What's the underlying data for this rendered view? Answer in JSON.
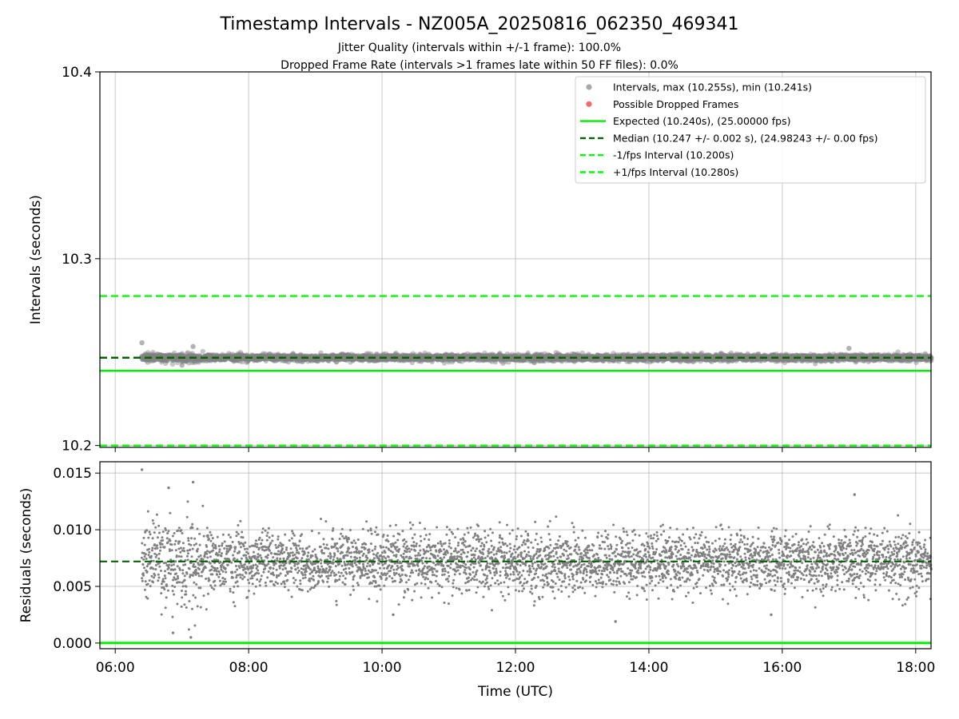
{
  "title": "Timestamp Intervals - NZ005A_20250816_062350_469341",
  "subtitle_lines": [
    "Jitter Quality (intervals within +/-1 frame): 100.0%",
    "Dropped Frame Rate (intervals >1 frames late within 50 FF files): 0.0%"
  ],
  "colors": {
    "points": "#808080",
    "points_legend": "#a9a9a9",
    "dropped": "#f26a6a",
    "expected": "#00ee00",
    "median": "#006400",
    "fps_bounds": "#00ff00",
    "grid": "#b0b0b0"
  },
  "chart_data": [
    {
      "type": "scatter",
      "panel": "intervals",
      "ylabel": "Intervals (seconds)",
      "xlabel": "",
      "ylim": [
        10.199,
        10.4
      ],
      "xlim_hours": [
        5.77,
        18.23
      ],
      "yticks": [
        10.2,
        10.3,
        10.4
      ],
      "ytick_labels": [
        "10.2",
        "10.3",
        "10.4"
      ],
      "grid": true,
      "legend_position": "upper right",
      "legend": [
        {
          "marker": "point",
          "color": "#a9a9a9",
          "label": "Intervals, max (10.255s), min (10.241s)"
        },
        {
          "marker": "point",
          "color": "#f26a6a",
          "label": "Possible Dropped Frames"
        },
        {
          "marker": "solid",
          "color": "#00ee00",
          "label": "Expected (10.240s), (25.00000 fps)"
        },
        {
          "marker": "dashed",
          "color": "#006400",
          "label": "Median (10.247 +/- 0.002 s), (24.98243 +/- 0.00 fps)"
        },
        {
          "marker": "dashed",
          "color": "#00ff00",
          "label": "-1/fps Interval (10.200s)"
        },
        {
          "marker": "dashed",
          "color": "#00ff00",
          "label": "+1/fps Interval (10.280s)"
        }
      ],
      "reference_lines": [
        {
          "name": "Expected",
          "y": 10.24,
          "style": "solid",
          "color": "#00ee00"
        },
        {
          "name": "Median",
          "y": 10.247,
          "style": "dashed",
          "color": "#006400"
        },
        {
          "name": "-1/fps Interval",
          "y": 10.2,
          "style": "dashed",
          "color": "#00ff00"
        },
        {
          "name": "+1/fps Interval",
          "y": 10.28,
          "style": "dashed",
          "color": "#00ff00"
        }
      ],
      "series": [
        {
          "name": "Intervals",
          "x_start": "06:23:50",
          "x_end": "18:14",
          "median": 10.247,
          "max": 10.255,
          "min": 10.241,
          "sample_points": [
            {
              "x": "06:24",
              "y": 10.255
            },
            {
              "x": "06:30",
              "y": 10.246
            },
            {
              "x": "07:00",
              "y": 10.243
            },
            {
              "x": "07:10",
              "y": 10.253
            },
            {
              "x": "09:00",
              "y": 10.248
            },
            {
              "x": "12:00",
              "y": 10.247
            },
            {
              "x": "15:00",
              "y": 10.246
            },
            {
              "x": "17:00",
              "y": 10.252
            },
            {
              "x": "18:14",
              "y": 10.247
            }
          ]
        }
      ]
    },
    {
      "type": "scatter",
      "panel": "residuals",
      "ylabel": "Residuals (seconds)",
      "xlabel": "Time (UTC)",
      "ylim": [
        -0.0005,
        0.016
      ],
      "xlim_hours": [
        5.77,
        18.23
      ],
      "yticks": [
        0.0,
        0.005,
        0.01,
        0.015
      ],
      "ytick_labels": [
        "0.000",
        "0.005",
        "0.010",
        "0.015"
      ],
      "xticks_hours": [
        6,
        8,
        10,
        12,
        14,
        16,
        18
      ],
      "xtick_labels": [
        "06:00",
        "08:00",
        "10:00",
        "12:00",
        "14:00",
        "16:00",
        "18:00"
      ],
      "grid": true,
      "reference_lines": [
        {
          "name": "Zero",
          "y": 0.0,
          "style": "solid",
          "color": "#00ee00"
        },
        {
          "name": "Median",
          "y": 0.0072,
          "style": "dashed",
          "color": "#006400"
        }
      ],
      "series": [
        {
          "name": "Residuals",
          "x_start": "06:24",
          "x_end": "18:14",
          "median": 0.0072,
          "max": 0.0153,
          "min": 0.0005,
          "sample_points": [
            {
              "x": "06:24",
              "y": 0.0153
            },
            {
              "x": "06:48",
              "y": 0.0137
            },
            {
              "x": "07:10",
              "y": 0.0142
            },
            {
              "x": "07:08",
              "y": 0.0005
            },
            {
              "x": "06:52",
              "y": 0.0009
            },
            {
              "x": "10:10",
              "y": 0.0025
            },
            {
              "x": "17:05",
              "y": 0.0131
            },
            {
              "x": "13:30",
              "y": 0.0019
            },
            {
              "x": "15:50",
              "y": 0.0025
            }
          ]
        }
      ]
    }
  ]
}
